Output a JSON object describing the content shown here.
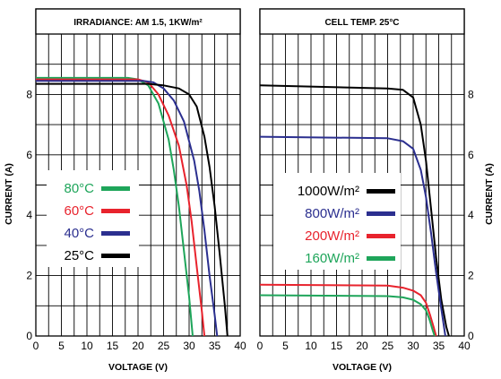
{
  "colors": {
    "black": "#000000",
    "blue": "#2b2f8f",
    "red": "#e8232d",
    "green": "#1ea55a",
    "grid": "#000000"
  },
  "chart_data": [
    {
      "type": "line",
      "title": "IRRADIANCE: AM 1.5, 1KW/m²",
      "xlabel": "VOLTAGE (V)",
      "ylabel": "CURRENT (A)",
      "xlim": [
        0,
        40
      ],
      "ylim": [
        0,
        10
      ],
      "xticks": [
        "0",
        "5",
        "10",
        "15",
        "20",
        "25",
        "30",
        "35",
        "40"
      ],
      "yticks": [
        "0",
        "2",
        "4",
        "6",
        "8"
      ],
      "grid": true,
      "legend_position": "center-left",
      "series": [
        {
          "name": "80°C",
          "color": "#1ea55a",
          "points": [
            [
              0,
              8.55
            ],
            [
              18,
              8.55
            ],
            [
              20,
              8.5
            ],
            [
              22,
              8.3
            ],
            [
              24,
              7.7
            ],
            [
              26,
              6.5
            ],
            [
              27,
              5.5
            ],
            [
              28,
              4.3
            ],
            [
              29,
              2.8
            ],
            [
              30,
              1.3
            ],
            [
              30.7,
              0.0
            ]
          ]
        },
        {
          "name": "60°C",
          "color": "#e8232d",
          "points": [
            [
              0,
              8.5
            ],
            [
              20,
              8.5
            ],
            [
              22,
              8.4
            ],
            [
              24,
              8.0
            ],
            [
              26,
              7.3
            ],
            [
              28,
              6.3
            ],
            [
              29.5,
              5.0
            ],
            [
              30.5,
              3.8
            ],
            [
              31.5,
              2.3
            ],
            [
              32.5,
              0.8
            ],
            [
              33,
              0.0
            ]
          ]
        },
        {
          "name": "40°C",
          "color": "#2b2f8f",
          "points": [
            [
              0,
              8.45
            ],
            [
              21,
              8.45
            ],
            [
              23,
              8.4
            ],
            [
              25,
              8.2
            ],
            [
              27,
              7.8
            ],
            [
              29,
              7.1
            ],
            [
              31,
              5.8
            ],
            [
              32,
              4.8
            ],
            [
              33,
              3.5
            ],
            [
              34,
              2.0
            ],
            [
              35,
              0.7
            ],
            [
              35.5,
              0.0
            ]
          ]
        },
        {
          "name": "25°C",
          "color": "#000000",
          "points": [
            [
              0,
              8.35
            ],
            [
              22,
              8.35
            ],
            [
              25,
              8.3
            ],
            [
              28,
              8.2
            ],
            [
              30,
              8.0
            ],
            [
              31.5,
              7.6
            ],
            [
              33,
              6.6
            ],
            [
              34,
              5.6
            ],
            [
              35,
              4.3
            ],
            [
              36,
              2.7
            ],
            [
              37,
              1.0
            ],
            [
              37.5,
              0.0
            ]
          ]
        }
      ]
    },
    {
      "type": "line",
      "title": "CELL TEMP. 25°C",
      "xlabel": "VOLTAGE (V)",
      "ylabel": "CURRENT (A)",
      "xlim": [
        0,
        40
      ],
      "ylim": [
        0,
        10
      ],
      "xticks": [
        "0",
        "5",
        "10",
        "15",
        "20",
        "25",
        "30",
        "35",
        "40"
      ],
      "yticks": [
        "0",
        "2",
        "4",
        "6",
        "8"
      ],
      "grid": true,
      "legend_position": "center-left",
      "series": [
        {
          "name": "1000W/m²",
          "color": "#000000",
          "points": [
            [
              0,
              8.3
            ],
            [
              25,
              8.2
            ],
            [
              28,
              8.15
            ],
            [
              30,
              7.9
            ],
            [
              31.5,
              7.0
            ],
            [
              32.5,
              5.8
            ],
            [
              33.5,
              4.2
            ],
            [
              34.5,
              2.6
            ],
            [
              35.5,
              1.2
            ],
            [
              36.5,
              0.3
            ],
            [
              37,
              0.0
            ]
          ]
        },
        {
          "name": "800W/m²",
          "color": "#2b2f8f",
          "points": [
            [
              0,
              6.6
            ],
            [
              25,
              6.55
            ],
            [
              28,
              6.45
            ],
            [
              30,
              6.2
            ],
            [
              31.5,
              5.5
            ],
            [
              32.5,
              4.6
            ],
            [
              33.5,
              3.4
            ],
            [
              34.5,
              2.1
            ],
            [
              35.5,
              0.9
            ],
            [
              36.3,
              0.0
            ]
          ]
        },
        {
          "name": "200W/m²",
          "color": "#e8232d",
          "points": [
            [
              0,
              1.7
            ],
            [
              25,
              1.67
            ],
            [
              28,
              1.6
            ],
            [
              30,
              1.5
            ],
            [
              31.5,
              1.35
            ],
            [
              32.5,
              1.1
            ],
            [
              33.3,
              0.7
            ],
            [
              34,
              0.3
            ],
            [
              34.5,
              0.0
            ]
          ]
        },
        {
          "name": "160W/m²",
          "color": "#1ea55a",
          "points": [
            [
              0,
              1.35
            ],
            [
              25,
              1.32
            ],
            [
              28,
              1.28
            ],
            [
              30,
              1.2
            ],
            [
              31.5,
              1.05
            ],
            [
              32.5,
              0.85
            ],
            [
              33.2,
              0.55
            ],
            [
              33.8,
              0.2
            ],
            [
              34.2,
              0.0
            ]
          ]
        }
      ]
    }
  ]
}
